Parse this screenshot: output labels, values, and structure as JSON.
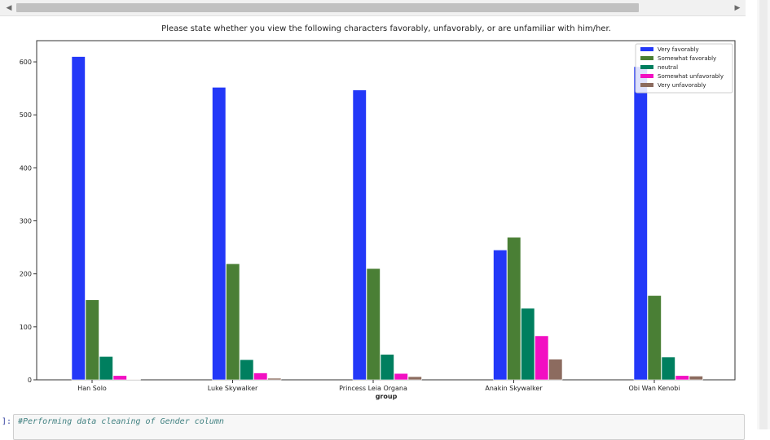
{
  "scrollbar": {
    "left_arrow": "◀",
    "right_arrow": "▶"
  },
  "chart_data": {
    "type": "bar",
    "title": "Please state whether you view the following characters favorably, unfavorably, or are unfamiliar with him/her.",
    "xlabel": "group",
    "ylabel": "",
    "categories": [
      "Han Solo",
      "Luke Skywalker",
      "Princess Leia Organa",
      "Anakin Skywalker",
      "Obi Wan Kenobi"
    ],
    "ylim": [
      0,
      640
    ],
    "yticks": [
      0,
      100,
      200,
      300,
      400,
      500,
      600
    ],
    "grid": false,
    "legend_position": "top-right",
    "series": [
      {
        "name": "Very favorably",
        "color": "#2338f8",
        "values": [
          610,
          552,
          547,
          245,
          591
        ]
      },
      {
        "name": "Somewhat favorably",
        "color": "#4a7f35",
        "values": [
          151,
          219,
          210,
          269,
          159
        ]
      },
      {
        "name": "neutral",
        "color": "#007f5f",
        "values": [
          44,
          38,
          48,
          135,
          43
        ]
      },
      {
        "name": "Somewhat unfavorably",
        "color": "#f20fc2",
        "values": [
          8,
          13,
          12,
          83,
          8
        ]
      },
      {
        "name": "Very unfavorably",
        "color": "#8c6b5f",
        "values": [
          1,
          3,
          6,
          39,
          7
        ]
      }
    ]
  },
  "code_cell": {
    "prompt": "]:",
    "text": "#Performing data cleaning of Gender column"
  }
}
